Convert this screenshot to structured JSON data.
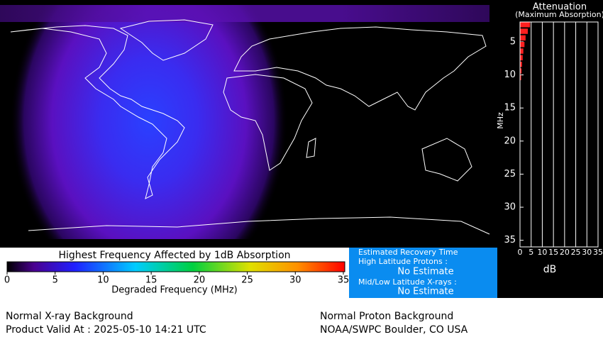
{
  "attenuation": {
    "title": "Attenuation",
    "subtitle": "(Maximum Absorption)",
    "ylabel": "MHz",
    "xlabel": "dB",
    "ylim": [
      2,
      36
    ],
    "yticks": [
      5,
      10,
      15,
      20,
      25,
      30,
      35
    ],
    "xlim": [
      0,
      35
    ],
    "xticks": [
      0,
      5,
      10,
      15,
      20,
      25,
      30,
      35
    ],
    "bars": {
      "frequencies": [
        2,
        3,
        4,
        5,
        6,
        7,
        8,
        9,
        10
      ],
      "values": [
        4.5,
        3.5,
        2.5,
        2,
        1.5,
        1.2,
        0.9,
        0.7,
        0.5
      ],
      "color": "#ff2020"
    }
  },
  "colorbar": {
    "title": "Highest Frequency Affected by 1dB Absorption",
    "label": "Degraded Frequency (MHz)",
    "lim": [
      0,
      35
    ],
    "ticks": [
      0,
      5,
      10,
      15,
      20,
      25,
      30,
      35
    ]
  },
  "recovery": {
    "title": "Estimated Recovery Time",
    "items": [
      {
        "label": "High Latitude Protons :",
        "value": "No Estimate"
      },
      {
        "label": "Mid/Low Latitude X-rays :",
        "value": "No Estimate"
      }
    ]
  },
  "footer": {
    "left": [
      "Normal X-ray Background",
      "Product Valid At : 2025-05-10 14:21 UTC"
    ],
    "right": [
      "Normal Proton Background",
      "NOAA/SWPC Boulder, CO USA"
    ]
  }
}
